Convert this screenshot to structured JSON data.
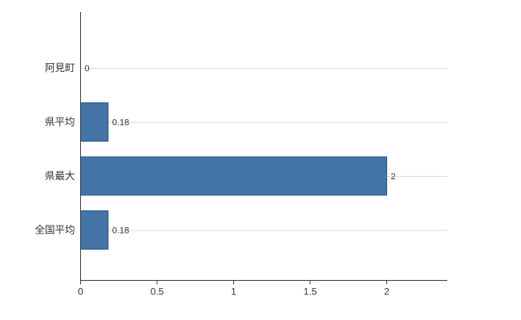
{
  "chart_data": {
    "type": "bar",
    "orientation": "horizontal",
    "title": "",
    "categories": [
      "阿見町",
      "県平均",
      "県最大",
      "全国平均"
    ],
    "values": [
      0,
      0.18,
      2,
      0.18
    ],
    "value_labels": [
      "0",
      "0.18",
      "2",
      "0.18"
    ],
    "x_ticks": [
      0,
      0.5,
      1,
      1.5,
      2
    ],
    "x_tick_labels": [
      "0",
      "0.5",
      "1",
      "1.5",
      "2"
    ],
    "xlim": [
      0,
      2.4
    ],
    "grid": true,
    "legend": "none",
    "colors": {
      "bar_fill": "#4473a7",
      "bar_border": "#2c5683",
      "gridline": "#dcdcdc",
      "axis": "#3c3c3c",
      "text": "#333333"
    }
  }
}
